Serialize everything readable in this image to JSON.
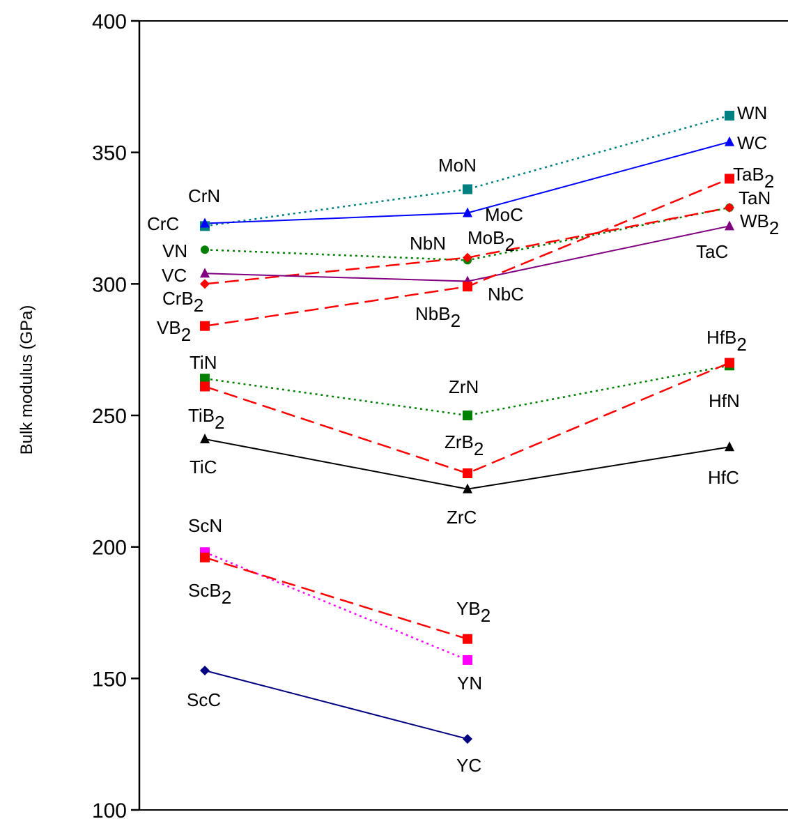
{
  "chart_data": {
    "type": "line",
    "title": "",
    "xlabel": "",
    "ylabel": "Bulk modulus (GPa)",
    "ylim": [
      100,
      400
    ],
    "yticks": [
      100,
      150,
      200,
      250,
      300,
      350,
      400
    ],
    "ytick_labels": [
      "100",
      "150",
      "200",
      "250",
      "300",
      "350",
      "400"
    ],
    "x": [
      1,
      2,
      3
    ],
    "grid": false,
    "series": [
      {
        "color": "#008080",
        "marker": "square",
        "dash": "dotted",
        "points": [
          {
            "x": 1,
            "y": 322,
            "label": "CrN"
          },
          {
            "x": 2,
            "y": 336,
            "label": "MoN"
          },
          {
            "x": 3,
            "y": 364,
            "label": "WN"
          }
        ]
      },
      {
        "color": "#0000ff",
        "marker": "triangle",
        "dash": "solid",
        "points": [
          {
            "x": 1,
            "y": 323,
            "label": "CrC"
          },
          {
            "x": 2,
            "y": 327,
            "label": "MoC"
          },
          {
            "x": 3,
            "y": 354,
            "label": "WC"
          }
        ]
      },
      {
        "color": "#008000",
        "marker": "circle",
        "dash": "dotted",
        "points": [
          {
            "x": 1,
            "y": 313,
            "label": "VN"
          },
          {
            "x": 2,
            "y": 309,
            "label": "NbN"
          },
          {
            "x": 3,
            "y": 329,
            "label": "TaN"
          }
        ]
      },
      {
        "color": "#ff0000",
        "marker": "diamond",
        "dash": "dashed",
        "points": [
          {
            "x": 1,
            "y": 300,
            "label": "CrB",
            "sub": "2"
          },
          {
            "x": 2,
            "y": 310,
            "label": "MoB",
            "sub": "2"
          },
          {
            "x": 3,
            "y": 329,
            "label": "WB",
            "sub": "2"
          }
        ]
      },
      {
        "color": "#800080",
        "marker": "triangle",
        "dash": "solid",
        "points": [
          {
            "x": 1,
            "y": 304,
            "label": "VC"
          },
          {
            "x": 2,
            "y": 301,
            "label": "NbC"
          },
          {
            "x": 3,
            "y": 322,
            "label": "TaC"
          }
        ]
      },
      {
        "color": "#ff0000",
        "marker": "square",
        "dash": "dashed",
        "points": [
          {
            "x": 1,
            "y": 284,
            "label": "VB",
            "sub": "2"
          },
          {
            "x": 2,
            "y": 299,
            "label": "NbB",
            "sub": "2"
          },
          {
            "x": 3,
            "y": 340,
            "label": "TaB",
            "sub": "2"
          }
        ]
      },
      {
        "color": "#008000",
        "marker": "square",
        "dash": "dotted",
        "points": [
          {
            "x": 1,
            "y": 264,
            "label": "TiN"
          },
          {
            "x": 2,
            "y": 250,
            "label": "ZrN"
          },
          {
            "x": 3,
            "y": 269,
            "label": "HfN"
          }
        ]
      },
      {
        "color": "#ff0000",
        "marker": "square",
        "dash": "dashed",
        "points": [
          {
            "x": 1,
            "y": 261,
            "label": "TiB",
            "sub": "2"
          },
          {
            "x": 2,
            "y": 228,
            "label": "ZrB",
            "sub": "2"
          },
          {
            "x": 3,
            "y": 270,
            "label": "HfB",
            "sub": "2"
          }
        ]
      },
      {
        "color": "#000000",
        "marker": "triangle",
        "dash": "solid",
        "points": [
          {
            "x": 1,
            "y": 241,
            "label": "TiC"
          },
          {
            "x": 2,
            "y": 222,
            "label": "ZrC"
          },
          {
            "x": 3,
            "y": 238,
            "label": "HfC"
          }
        ]
      },
      {
        "color": "#ff00ff",
        "marker": "square",
        "dash": "dotted",
        "points": [
          {
            "x": 1,
            "y": 198,
            "label": "ScN"
          },
          {
            "x": 2,
            "y": 157,
            "label": "YN"
          }
        ]
      },
      {
        "color": "#ff0000",
        "marker": "square",
        "dash": "dashed",
        "points": [
          {
            "x": 1,
            "y": 196,
            "label": "ScB",
            "sub": "2"
          },
          {
            "x": 2,
            "y": 165,
            "label": "YB",
            "sub": "2"
          }
        ]
      },
      {
        "color": "#000080",
        "marker": "diamond",
        "dash": "solid",
        "points": [
          {
            "x": 1,
            "y": 153,
            "label": "ScC"
          },
          {
            "x": 2,
            "y": 127,
            "label": "YC"
          }
        ]
      }
    ]
  }
}
